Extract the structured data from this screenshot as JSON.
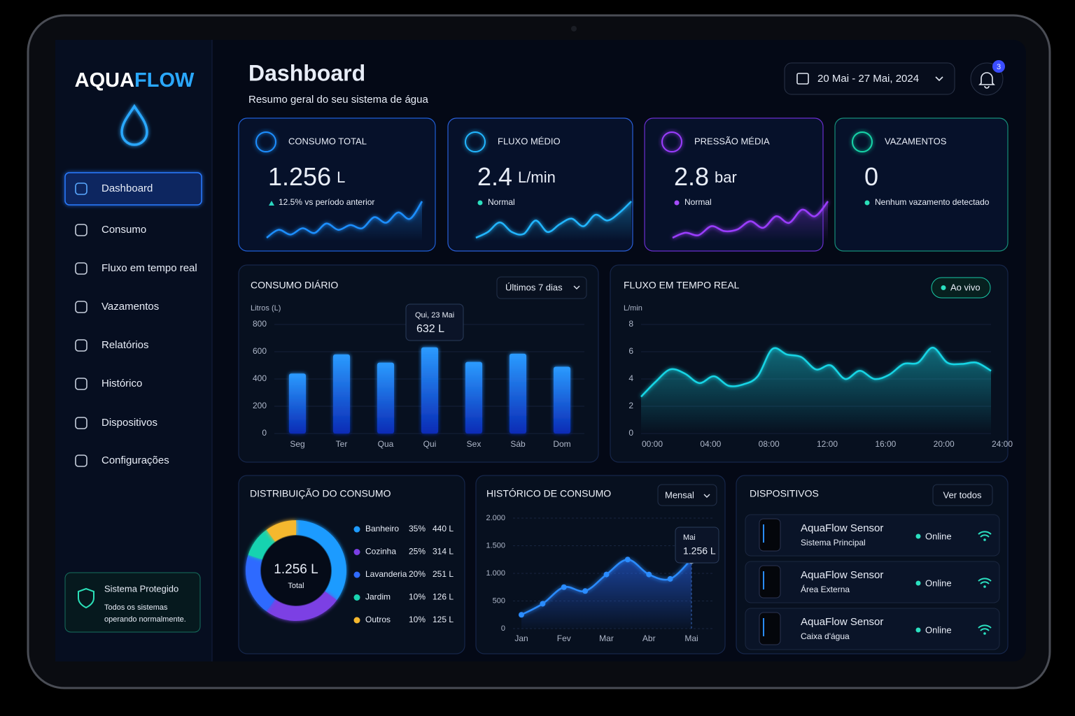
{
  "sidebar": {
    "brand": [
      "AQUA",
      "FLOW"
    ],
    "nav": [
      "Dashboard",
      "Consumo",
      "Fluxo em tempo real",
      "Vazamentos",
      "Relatórios",
      "Histórico",
      "Dispositivos",
      "Configurações"
    ],
    "active": 0,
    "status": {
      "title": "Sistema Protegido",
      "lines": [
        "Todos os sistemas",
        "operando normalmente."
      ]
    }
  },
  "header": {
    "title": "Dashboard",
    "subtitle": "Resumo geral do seu sistema de água",
    "date_range": "20 Mai - 27 Mai, 2024",
    "notifications": 3
  },
  "kpis": [
    {
      "label": "CONSUMO TOTAL",
      "value": "1.256",
      "unit": "L",
      "note": "12.5% vs período anterior",
      "color": "#1e8fff",
      "trend": [
        2,
        3,
        2.4,
        3.2,
        2.6,
        3.8,
        3,
        3.6,
        3.2,
        4.6,
        3.9,
        5.2,
        4.4,
        6.6
      ]
    },
    {
      "label": "FLUXO MÉDIO",
      "value": "2.4",
      "unit": "L/min",
      "note": "Normal",
      "color": "#22b6ff",
      "trend": [
        3,
        3.6,
        4.6,
        3.6,
        3.4,
        4.8,
        3.6,
        4.4,
        5,
        4.2,
        5.4,
        4.8,
        5.6,
        6.8
      ]
    },
    {
      "label": "PRESSÃO MÉDIA",
      "value": "2.8",
      "unit": "bar",
      "note": "Normal",
      "color": "#9b3cff",
      "trend": [
        2,
        2.6,
        2.3,
        3.4,
        2.8,
        3,
        4,
        3.2,
        4.6,
        3.8,
        5.4,
        4.6,
        6.4
      ]
    },
    {
      "label": "VAZAMENTOS",
      "value": "0",
      "note": "Nenhum vazamento detectado",
      "color": "#18d4a8"
    }
  ],
  "chart_data": [
    {
      "type": "bar",
      "title": "CONSUMO DIÁRIO",
      "filter": "Últimos 7 dias",
      "y_label": "Litros (L)",
      "categories": [
        "Seg",
        "Ter",
        "Qua",
        "Qui",
        "Sex",
        "Sáb",
        "Dom"
      ],
      "values": [
        440,
        580,
        520,
        632,
        525,
        585,
        490
      ],
      "color": "#1d6bff",
      "ylim": [
        0,
        800
      ],
      "yticks": [
        0,
        200,
        400,
        600,
        800
      ],
      "grid": true,
      "tooltip": {
        "index": 3,
        "title": "Qui, 23 Mai",
        "label": "632 L"
      }
    },
    {
      "type": "area",
      "title": "FLUXO EM TEMPO REAL",
      "badge": "Ao vivo",
      "y_label": "L/min",
      "x": [
        0,
        1,
        2,
        3,
        4,
        5,
        6,
        7,
        8,
        9,
        10,
        11,
        12,
        13,
        14,
        15,
        16,
        17,
        18,
        19,
        20,
        21,
        22,
        23,
        24
      ],
      "values": [
        2.7,
        3.8,
        4.7,
        4.4,
        3.7,
        4.2,
        3.5,
        3.6,
        4.2,
        6.2,
        5.8,
        5.6,
        4.7,
        5.0,
        4.0,
        4.6,
        4.0,
        4.3,
        5.1,
        5.2,
        6.3,
        5.2,
        5.1,
        5.2,
        4.6
      ],
      "color": "#19d6e6",
      "xlim": [
        0,
        24
      ],
      "xticks": [
        {
          "value": 0,
          "label": "00:00"
        },
        {
          "value": 4,
          "label": "04:00"
        },
        {
          "value": 8,
          "label": "08:00"
        },
        {
          "value": 12,
          "label": "12:00"
        },
        {
          "value": 16,
          "label": "16:00"
        },
        {
          "value": 20,
          "label": "20:00"
        },
        {
          "value": 24,
          "label": "24:00"
        }
      ],
      "ylim": [
        0,
        8
      ],
      "yticks": [
        0,
        2,
        4,
        6,
        8
      ],
      "grid": true
    },
    {
      "type": "donut",
      "title": "DISTRIBUIÇÃO DO CONSUMO",
      "center_label": "1.256 L",
      "center_sublabel": "Total",
      "categories": [
        "Banheiro",
        "Cozinha",
        "Lavanderia",
        "Jardim",
        "Outros"
      ],
      "values": [
        35,
        25,
        20,
        10,
        10
      ],
      "value_labels": [
        "35%",
        "25%",
        "20%",
        "10%",
        "10%"
      ],
      "volumes": [
        440,
        314,
        251,
        126,
        125
      ],
      "volume_labels": [
        "440 L",
        "314 L",
        "251 L",
        "126 L",
        "125 L"
      ],
      "colors": [
        "#1e9bff",
        "#7b3fe4",
        "#2f6bff",
        "#19d3b0",
        "#f5b82e"
      ]
    },
    {
      "type": "line",
      "title": "HISTÓRICO DE CONSUMO",
      "filter": "Mensal",
      "categories": [
        "Jan",
        null,
        "Fev",
        null,
        "Mar",
        null,
        "Abr",
        null,
        "Mai"
      ],
      "values": [
        250,
        450,
        750,
        680,
        980,
        1250,
        980,
        900,
        1256
      ],
      "color": "#2a8cff",
      "ylim": [
        0,
        2000
      ],
      "yticks": [
        0,
        500,
        {
          "value": 1000,
          "label": "1.000"
        },
        {
          "value": 1500,
          "label": "1.500"
        },
        {
          "value": 2000,
          "label": "2.000"
        }
      ],
      "grid": true,
      "tooltip": {
        "index": 8,
        "title": "Mai",
        "label": "1.256 L"
      }
    }
  ],
  "devices": {
    "title": "DISPOSITIVOS",
    "action": "Ver todos",
    "items": [
      {
        "name": "AquaFlow Sensor",
        "location": "Sistema Principal",
        "status": "Online"
      },
      {
        "name": "AquaFlow Sensor",
        "location": "Área Externa",
        "status": "Online"
      },
      {
        "name": "AquaFlow Sensor",
        "location": "Caixa d'água",
        "status": "Online"
      }
    ]
  }
}
